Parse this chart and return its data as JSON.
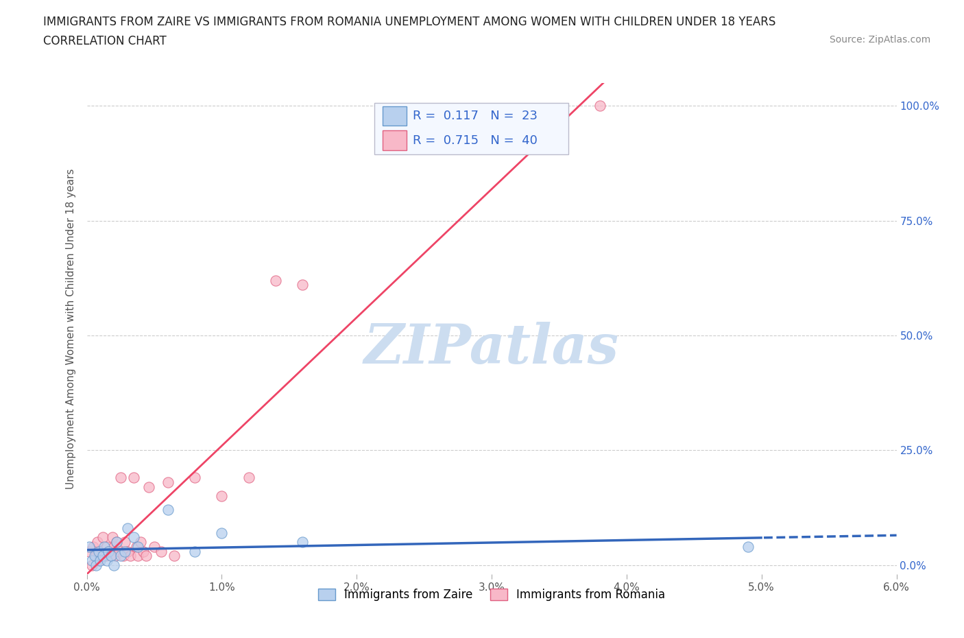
{
  "title_line1": "IMMIGRANTS FROM ZAIRE VS IMMIGRANTS FROM ROMANIA UNEMPLOYMENT AMONG WOMEN WITH CHILDREN UNDER 18 YEARS",
  "title_line2": "CORRELATION CHART",
  "source": "Source: ZipAtlas.com",
  "ylabel": "Unemployment Among Women with Children Under 18 years",
  "xlim": [
    0.0,
    0.06
  ],
  "ylim": [
    -0.02,
    1.05
  ],
  "xticks": [
    0.0,
    0.01,
    0.02,
    0.03,
    0.04,
    0.05,
    0.06
  ],
  "xticklabels": [
    "0.0%",
    "1.0%",
    "2.0%",
    "3.0%",
    "4.0%",
    "5.0%",
    "6.0%"
  ],
  "yticks": [
    0.0,
    0.25,
    0.5,
    0.75,
    1.0
  ],
  "yticklabels": [
    "0.0%",
    "25.0%",
    "50.0%",
    "75.0%",
    "100.0%"
  ],
  "grid_color": "#cccccc",
  "watermark": "ZIPatlas",
  "watermark_color": "#ccddf0",
  "series_zaire": {
    "label": "Immigrants from Zaire",
    "color": "#b8d0ee",
    "edge_color": "#6699cc",
    "R": 0.117,
    "N": 23,
    "x": [
      0.0002,
      0.0004,
      0.0006,
      0.0007,
      0.0009,
      0.001,
      0.0012,
      0.0013,
      0.0015,
      0.0016,
      0.0018,
      0.002,
      0.0022,
      0.0025,
      0.0028,
      0.003,
      0.0035,
      0.0038,
      0.006,
      0.008,
      0.01,
      0.016,
      0.049
    ],
    "y": [
      0.04,
      0.01,
      0.02,
      0.0,
      0.03,
      0.01,
      0.02,
      0.04,
      0.01,
      0.03,
      0.02,
      0.0,
      0.05,
      0.02,
      0.03,
      0.08,
      0.06,
      0.04,
      0.12,
      0.03,
      0.07,
      0.05,
      0.04
    ],
    "trend_color": "#3366bb",
    "trend_style": "--"
  },
  "series_romania": {
    "label": "Immigrants from Romania",
    "color": "#f8b8c8",
    "edge_color": "#e06080",
    "R": 0.715,
    "N": 40,
    "x": [
      0.0002,
      0.0004,
      0.0005,
      0.0007,
      0.0008,
      0.0009,
      0.001,
      0.0011,
      0.0012,
      0.0014,
      0.0015,
      0.0016,
      0.0018,
      0.0019,
      0.002,
      0.0021,
      0.0022,
      0.0024,
      0.0025,
      0.0027,
      0.0028,
      0.003,
      0.0032,
      0.0035,
      0.0037,
      0.0038,
      0.004,
      0.0042,
      0.0044,
      0.0046,
      0.005,
      0.0055,
      0.006,
      0.0065,
      0.008,
      0.01,
      0.012,
      0.014,
      0.016,
      0.038
    ],
    "y": [
      0.03,
      0.0,
      0.04,
      0.02,
      0.05,
      0.01,
      0.03,
      0.02,
      0.06,
      0.02,
      0.04,
      0.03,
      0.02,
      0.06,
      0.04,
      0.02,
      0.05,
      0.03,
      0.19,
      0.02,
      0.05,
      0.03,
      0.02,
      0.19,
      0.04,
      0.02,
      0.05,
      0.03,
      0.02,
      0.17,
      0.04,
      0.03,
      0.18,
      0.02,
      0.19,
      0.15,
      0.19,
      0.62,
      0.61,
      1.0
    ],
    "trend_color": "#ee4466",
    "trend_style": "-"
  },
  "legend_text_color": "#3366cc",
  "legend_box_color": "#f4f8ff",
  "background_color": "#ffffff",
  "title_color": "#222222",
  "axis_label_color": "#555555"
}
